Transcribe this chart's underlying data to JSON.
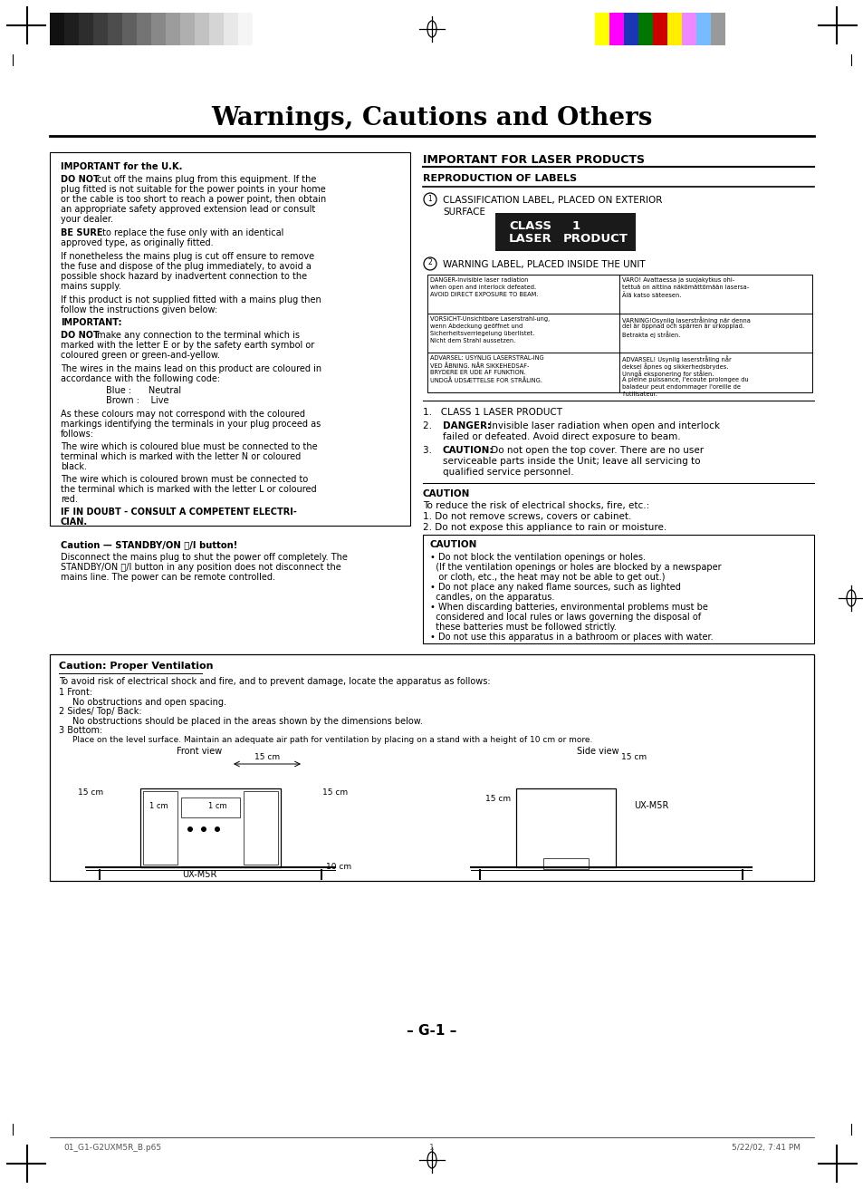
{
  "title": "Warnings, Cautions and Others",
  "bg_color": "#ffffff",
  "page_number": "– G-1 –",
  "footer_left": "01_G1-G2UXM5R_B.p65",
  "footer_center": "1",
  "footer_right": "5/22/02, 7:41 PM",
  "gs_colors": [
    "#111111",
    "#1e1e1e",
    "#2d2d2d",
    "#3d3d3d",
    "#4d4d4d",
    "#606060",
    "#747474",
    "#888888",
    "#9c9c9c",
    "#afafaf",
    "#c2c2c2",
    "#d5d5d5",
    "#e8e8e8",
    "#f5f5f5",
    "#ffffff"
  ],
  "color_bars": [
    "#ffff00",
    "#ff00ff",
    "#1a35b5",
    "#007700",
    "#cc0000",
    "#ffee00",
    "#ee88ff",
    "#77bbff",
    "#999999"
  ]
}
